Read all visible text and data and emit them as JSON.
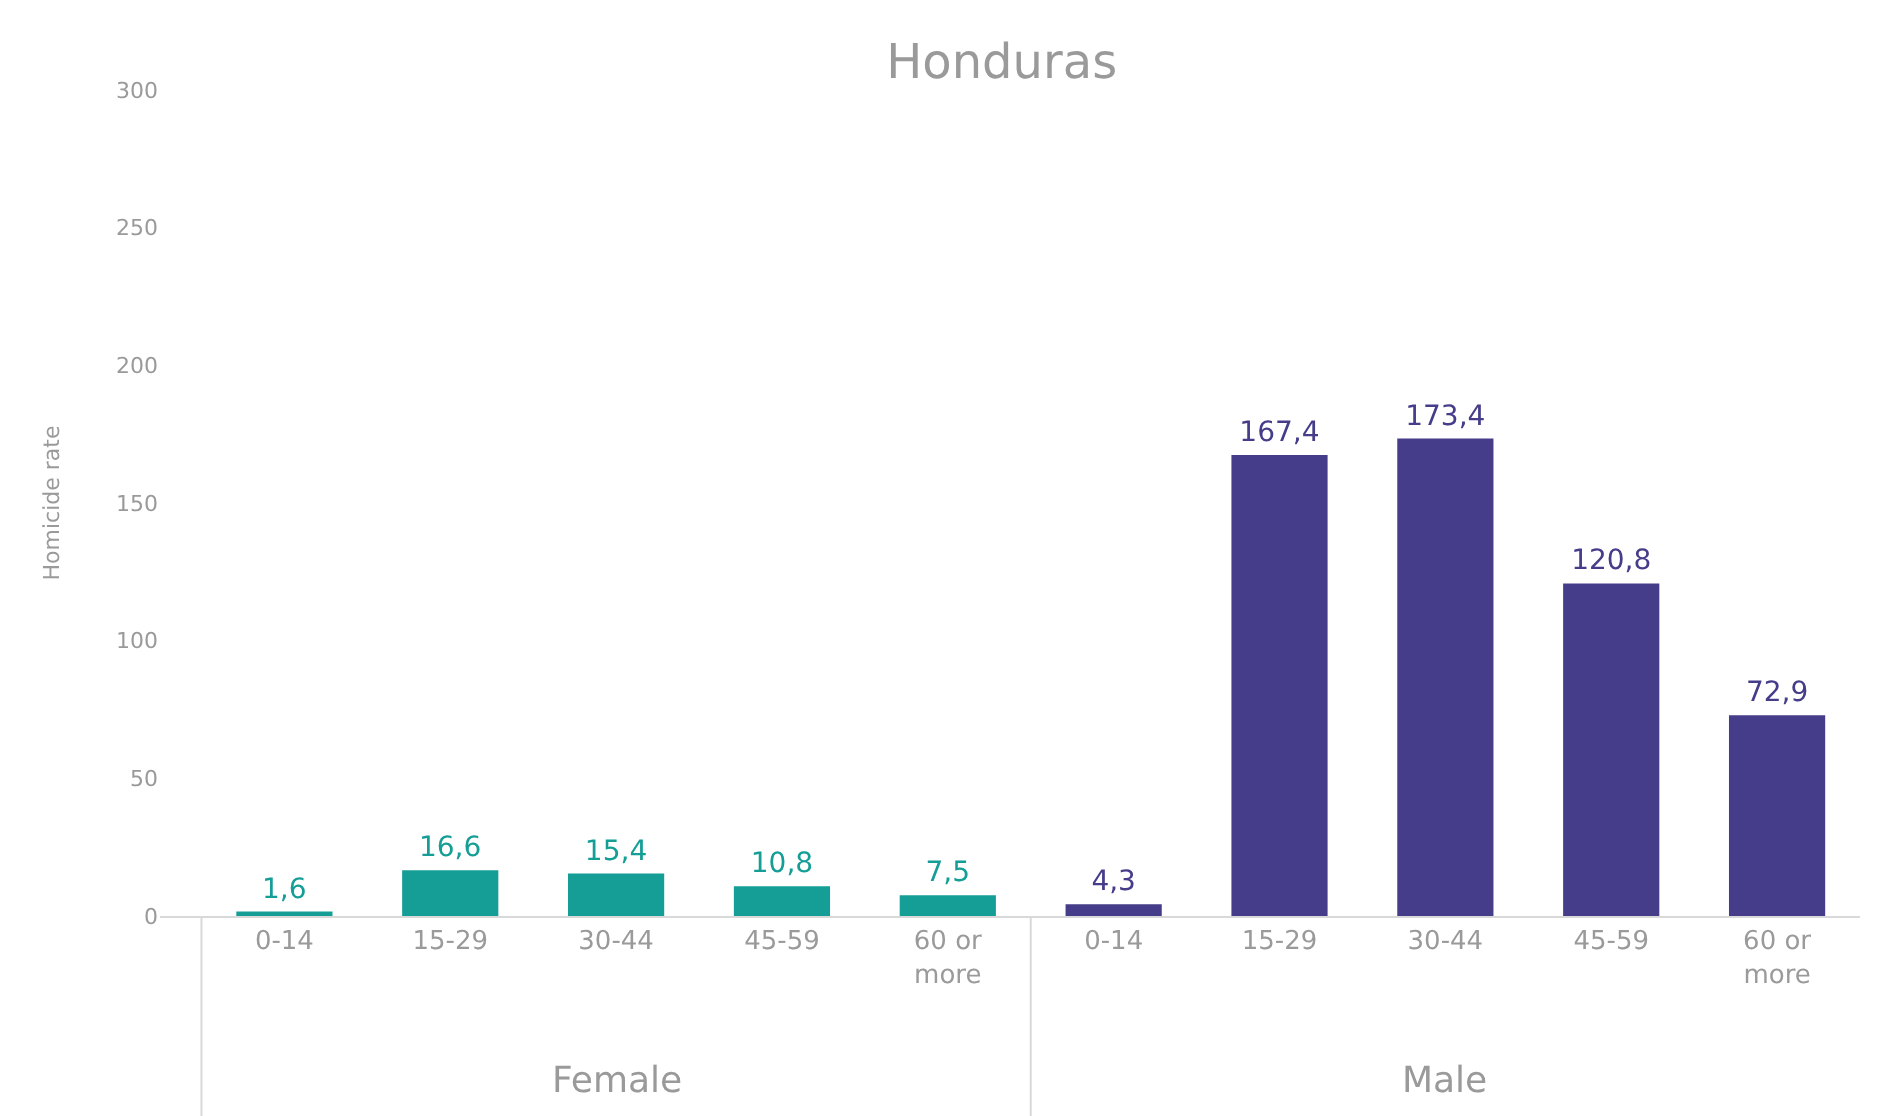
{
  "chart_data": {
    "type": "bar",
    "title": "Honduras",
    "ylabel": "Homicide rate",
    "categories": [
      "0-14",
      "15-29",
      "30-44",
      "45-59",
      "60 or more",
      "0-14",
      "15-29",
      "30-44",
      "45-59",
      "60 or more"
    ],
    "values": [
      1.6,
      16.6,
      15.4,
      10.8,
      7.5,
      4.3,
      167.4,
      173.4,
      120.8,
      72.9
    ],
    "colors": [
      "#159e96",
      "#159e96",
      "#159e96",
      "#159e96",
      "#159e96",
      "#453d8a",
      "#453d8a",
      "#453d8a",
      "#453d8a",
      "#453d8a"
    ],
    "value_labels": [
      "1,6",
      "16,6",
      "15,4",
      "10,8",
      "7,5",
      "4,3",
      "167,4",
      "173,4",
      "120,8",
      "72,9"
    ],
    "ylim": [
      0,
      300
    ],
    "yticks": [
      0,
      50,
      100,
      150,
      200,
      250,
      300
    ],
    "annotations": [
      "Female",
      "Male"
    ]
  }
}
